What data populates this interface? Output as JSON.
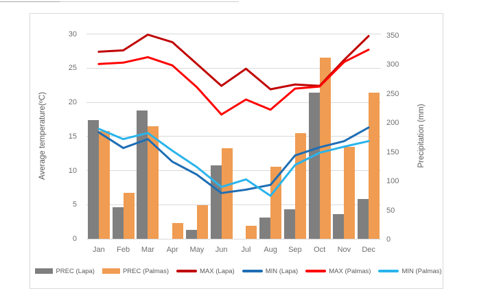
{
  "page": {
    "background": "#ffffff"
  },
  "chart_data": {
    "type": "combo-bar-line",
    "title": "",
    "categories": [
      "Jan",
      "Feb",
      "Mar",
      "Apr",
      "May",
      "Jun",
      "Jul",
      "Aug",
      "Sep",
      "Oct",
      "Nov",
      "Dec"
    ],
    "left_axis": {
      "title": "Average temperature(ºC)",
      "min": 0,
      "max": 30,
      "ticks": [
        0,
        5,
        10,
        15,
        20,
        25,
        30
      ]
    },
    "right_axis": {
      "title": "Precipitation (mm)",
      "min": 0,
      "max": 350,
      "ticks": [
        0,
        50,
        100,
        150,
        200,
        250,
        300,
        350
      ]
    },
    "grid": true,
    "legend_position": "bottom",
    "series": [
      {
        "name": "PREC (Lapa)",
        "type": "bar",
        "axis": "right",
        "color": "#7f7f7f",
        "values": [
          204,
          54,
          221,
          0,
          15,
          126,
          0,
          37,
          51,
          252,
          43,
          68
        ]
      },
      {
        "name": "PREC (Palmas)",
        "type": "bar",
        "axis": "right",
        "color": "#f09c52",
        "values": [
          186,
          79,
          194,
          27,
          58,
          156,
          23,
          124,
          182,
          312,
          158,
          252
        ]
      },
      {
        "name": "MAX (Lapa)",
        "type": "line",
        "axis": "left",
        "color": "#c00000",
        "values": [
          27.4,
          27.6,
          29.9,
          28.8,
          25.6,
          22.4,
          24.9,
          21.9,
          22.6,
          22.4,
          26.2,
          29.7
        ]
      },
      {
        "name": "MIN (Lapa)",
        "type": "line",
        "axis": "left",
        "color": "#1e6eb4",
        "values": [
          15.6,
          13.3,
          14.6,
          11.3,
          9.4,
          6.7,
          7.2,
          7.9,
          12.2,
          13.4,
          14.3,
          16.3
        ]
      },
      {
        "name": "MAX (Palmas)",
        "type": "line",
        "axis": "left",
        "color": "#ff0000",
        "values": [
          25.6,
          25.8,
          26.6,
          25.4,
          22.2,
          18.2,
          20.4,
          18.9,
          22.0,
          22.3,
          25.9,
          27.7
        ]
      },
      {
        "name": "MIN (Palmas)",
        "type": "line",
        "axis": "left",
        "color": "#29b4ec",
        "values": [
          16.1,
          14.6,
          15.5,
          12.9,
          10.5,
          7.6,
          8.7,
          6.3,
          10.8,
          12.6,
          13.5,
          14.3
        ]
      }
    ],
    "legend_order": [
      "PREC (Lapa)",
      "PREC (Palmas)",
      "MAX (Lapa)",
      "MIN (Lapa)",
      "MAX (Palmas)",
      "MIN (Palmas)"
    ]
  }
}
